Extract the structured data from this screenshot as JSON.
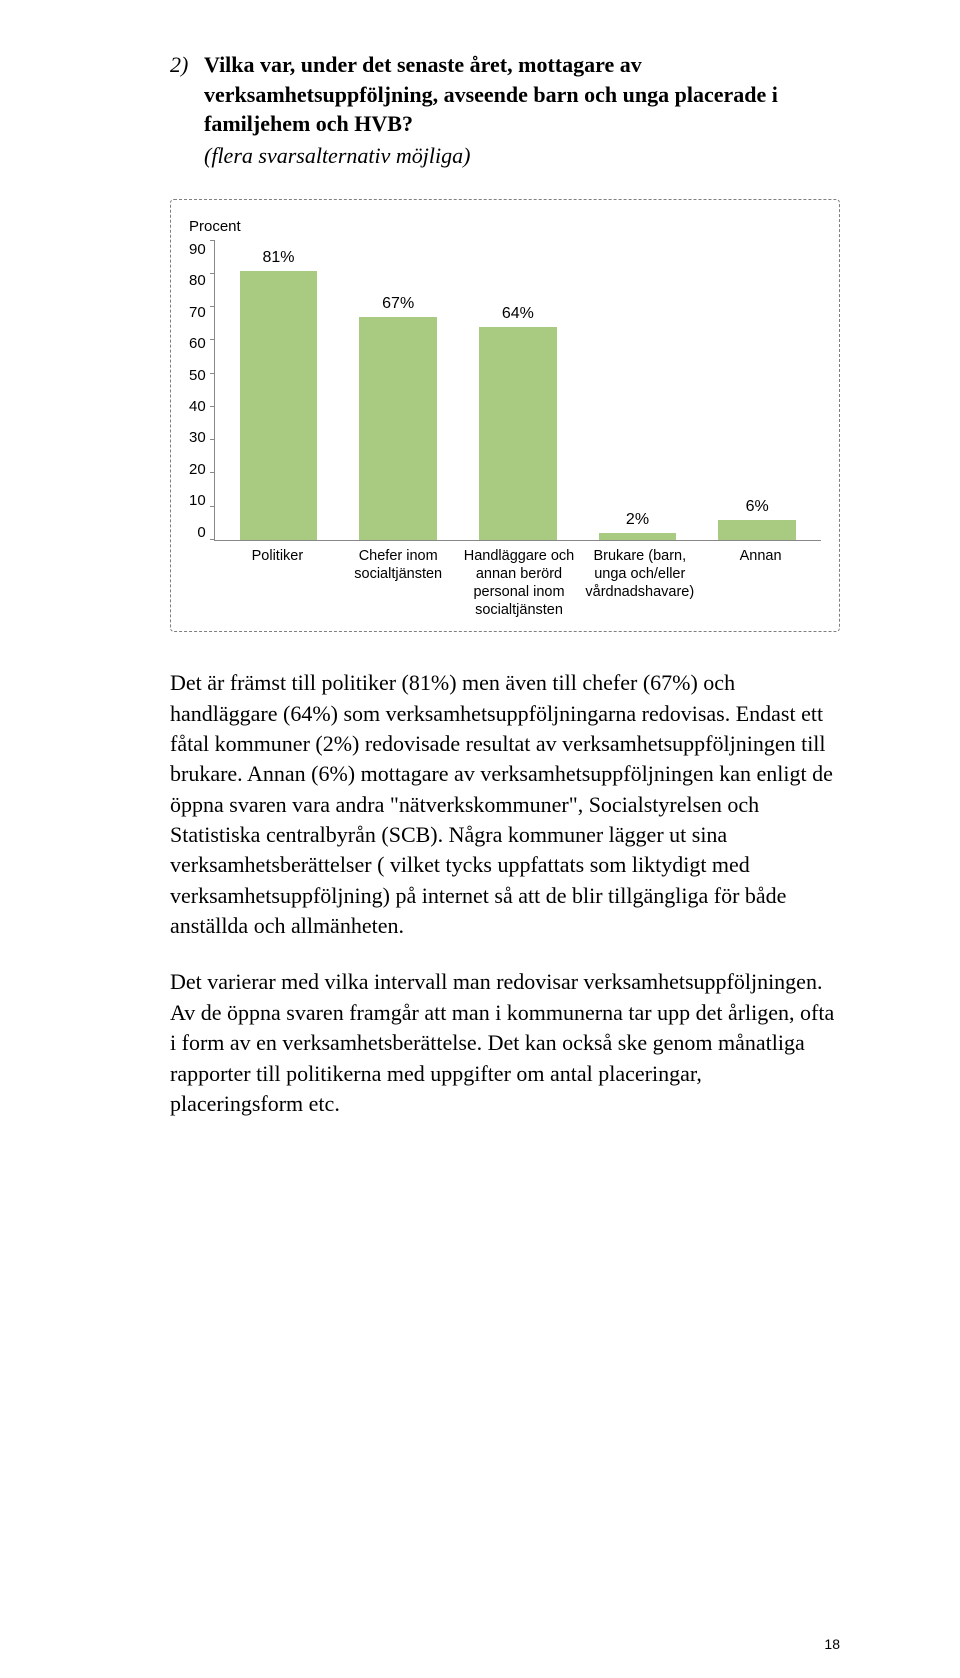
{
  "question": {
    "number": "2)",
    "text": "Vilka var, under det senaste året, mottagare av verksamhetsuppföljning, avseende barn och unga placerade i familjehem och HVB?",
    "note": "(flera svarsalternativ möjliga)"
  },
  "chart": {
    "type": "bar",
    "y_label": "Procent",
    "ylim": [
      0,
      90
    ],
    "ytick_step": 10,
    "yticks": [
      90,
      80,
      70,
      60,
      50,
      40,
      30,
      20,
      10,
      0
    ],
    "bar_color": "#a9cb81",
    "axis_color": "#888888",
    "value_fontsize": 16,
    "tick_fontsize": 15,
    "xlabel_fontsize": 14.5,
    "categories": [
      "Politiker",
      "Chefer inom socialtjänsten",
      "Handläggare och annan berörd personal inom socialtjänsten",
      "Brukare (barn, unga och/eller vårdnadshavare)",
      "Annan"
    ],
    "values": [
      81,
      67,
      64,
      2,
      6
    ],
    "value_labels": [
      "81%",
      "67%",
      "64%",
      "2%",
      "6%"
    ]
  },
  "body": {
    "p1": "Det är främst till politiker (81%) men även till chefer (67%) och handläggare (64%) som verksamhetsuppföljningarna redovisas. Endast ett fåtal kommuner (2%) redovisade resultat av verksamhetsuppföljningen till brukare. Annan (6%) mottagare av verksamhetsuppföljningen kan enligt de öppna svaren vara andra \"nätverkskommuner\", Socialstyrelsen och Statistiska centralbyrån (SCB). Några kommuner lägger ut sina verksamhetsberättelser ( vilket tycks uppfattats som liktydigt med verksamhetsuppföljning) på internet så att de blir tillgängliga för både anställda och allmänheten.",
    "p2": "Det varierar med vilka intervall man redovisar verksamhetsuppföljningen. Av de öppna svaren framgår att man i kommunerna tar upp det årligen, ofta i form av en verksamhetsberättelse. Det kan också ske genom månatliga rapporter till politikerna med uppgifter om antal placeringar, placeringsform etc."
  },
  "page_number": "18"
}
